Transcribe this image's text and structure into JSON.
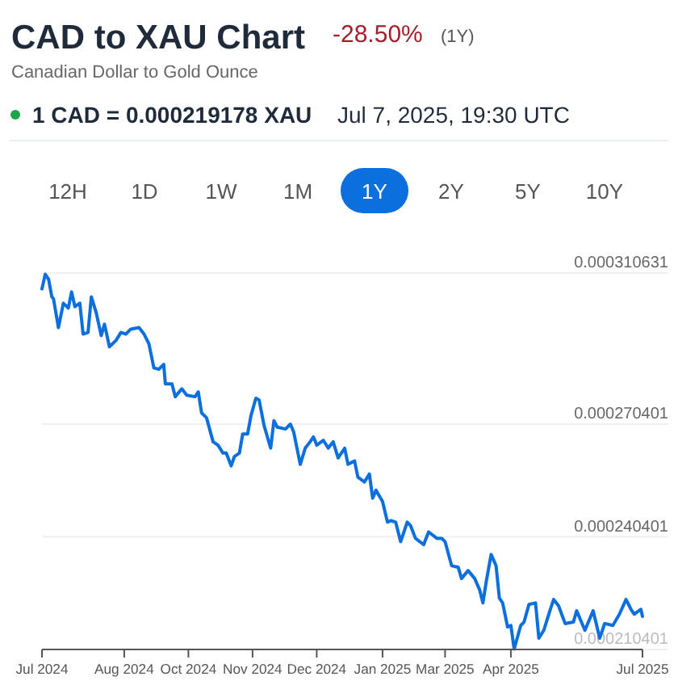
{
  "chart_data": {
    "type": "line",
    "title": "CAD to XAU Chart",
    "subtitle": "Canadian Dollar to Gold Ounce",
    "annotations": [
      "-28.50%",
      "(1Y)",
      "1 CAD = 0.000219178 XAU",
      "Jul 7, 2025, 19:30 UTC",
      "12H",
      "1D",
      "1W",
      "1M",
      "1Y",
      "2Y",
      "5Y",
      "10Y"
    ],
    "x": [
      "2024-07-07",
      "2024-07-09",
      "2024-07-11",
      "2024-07-13",
      "2024-07-14",
      "2024-07-17",
      "2024-07-20",
      "2024-07-23",
      "2024-07-25",
      "2024-07-27",
      "2024-07-30",
      "2024-08-01",
      "2024-08-04",
      "2024-08-06",
      "2024-08-09",
      "2024-08-12",
      "2024-08-14",
      "2024-08-17",
      "2024-08-21",
      "2024-08-24",
      "2024-08-27",
      "2024-08-30",
      "2024-09-04",
      "2024-09-07",
      "2024-09-10",
      "2024-09-13",
      "2024-09-16",
      "2024-09-19",
      "2024-09-20",
      "2024-09-24",
      "2024-09-26",
      "2024-09-30",
      "2024-10-03",
      "2024-10-08",
      "2024-10-10",
      "2024-10-12",
      "2024-10-15",
      "2024-10-19",
      "2024-10-22",
      "2024-10-25",
      "2024-10-27",
      "2024-10-30",
      "2024-11-01",
      "2024-11-04",
      "2024-11-06",
      "2024-11-09",
      "2024-11-11",
      "2024-11-14",
      "2024-11-16",
      "2024-11-19",
      "2024-11-23",
      "2024-11-25",
      "2024-11-27",
      "2024-12-02",
      "2024-12-05",
      "2024-12-07",
      "2024-12-11",
      "2024-12-14",
      "2024-12-17",
      "2024-12-19",
      "2024-12-21",
      "2024-12-25",
      "2024-12-28",
      "2024-12-31",
      "2025-01-03",
      "2025-01-07",
      "2025-01-09",
      "2025-01-13",
      "2025-01-15",
      "2025-01-19",
      "2025-01-22",
      "2025-01-24",
      "2025-01-26",
      "2025-01-30",
      "2025-02-02",
      "2025-02-04",
      "2025-02-07",
      "2025-02-10",
      "2025-02-14",
      "2025-02-16",
      "2025-02-19",
      "2025-02-24",
      "2025-02-27",
      "2025-03-04",
      "2025-03-07",
      "2025-03-09",
      "2025-03-13",
      "2025-03-17",
      "2025-03-19",
      "2025-03-23",
      "2025-03-27",
      "2025-03-30",
      "2025-04-01",
      "2025-04-03",
      "2025-04-06",
      "2025-04-09",
      "2025-04-11",
      "2025-04-13",
      "2025-04-16",
      "2025-04-18",
      "2025-04-20",
      "2025-04-24",
      "2025-04-26",
      "2025-04-29",
      "2025-05-03",
      "2025-05-05",
      "2025-05-08",
      "2025-05-12",
      "2025-05-14",
      "2025-05-17",
      "2025-05-21",
      "2025-05-26",
      "2025-05-28",
      "2025-06-02",
      "2025-06-07",
      "2025-06-11",
      "2025-06-14",
      "2025-06-19",
      "2025-06-23",
      "2025-06-27",
      "2025-06-30",
      "2025-07-02",
      "2025-07-06",
      "2025-07-07"
    ],
    "series": [
      {
        "color": "#0b6fde",
        "values": [
          0.0003064,
          0.0003103,
          0.000309,
          0.0003043,
          0.0003038,
          0.0002961,
          0.0003026,
          0.0003013,
          0.0003056,
          0.0003017,
          0.0003026,
          0.0002944,
          0.0002948,
          0.0003043,
          0.0003,
          0.000294,
          0.000297,
          0.000291,
          0.0002927,
          0.0002948,
          0.0002944,
          0.0002957,
          0.0002961,
          0.0002944,
          0.0002918,
          0.0002854,
          0.000285,
          0.0002863,
          0.0002811,
          0.0002811,
          0.0002777,
          0.0002798,
          0.0002781,
          0.0002777,
          0.000279,
          0.0002734,
          0.0002721,
          0.0002657,
          0.0002648,
          0.0002627,
          0.0002627,
          0.0002593,
          0.0002618,
          0.0002627,
          0.0002678,
          0.0002678,
          0.0002726,
          0.0002773,
          0.0002768,
          0.00027,
          0.000264,
          0.0002713,
          0.0002696,
          0.0002691,
          0.0002704,
          0.0002683,
          0.0002597,
          0.000264,
          0.0002657,
          0.000267,
          0.0002648,
          0.0002661,
          0.000264,
          0.0002657,
          0.0002614,
          0.000264,
          0.0002597,
          0.0002606,
          0.0002563,
          0.000255,
          0.0002571,
          0.0002507,
          0.0002528,
          0.0002498,
          0.0002443,
          0.0002447,
          0.0002443,
          0.0002391,
          0.0002443,
          0.0002434,
          0.00024,
          0.0002383,
          0.0002417,
          0.00024,
          0.00024,
          0.0002391,
          0.0002327,
          0.0002323,
          0.0002293,
          0.0002314,
          0.0002293,
          0.0002263,
          0.0002228,
          0.0002284,
          0.0002357,
          0.0002327,
          0.0002241,
          0.0002228,
          0.0002164,
          0.0002168,
          0.0002105,
          0.0002168,
          0.0002177,
          0.0002224,
          0.0002228,
          0.0002134,
          0.0002155,
          0.0002211,
          0.0002237,
          0.000222,
          0.0002173,
          0.0002177,
          0.0002207,
          0.0002155,
          0.0002207,
          0.0002134,
          0.0002173,
          0.0002168,
          0.0002198,
          0.0002237,
          0.0002211,
          0.0002198,
          0.0002211,
          0.0002192
        ]
      }
    ],
    "xlim": [
      "2024-07-07",
      "2025-07-07"
    ],
    "xticks": [
      {
        "value": "2024-07-07",
        "label": "Jul 2024"
      },
      {
        "value": "2024-08-26",
        "label": "Aug 2024"
      },
      {
        "value": "2024-10-04",
        "label": "Oct 2024"
      },
      {
        "value": "2024-11-12",
        "label": "Nov 2024"
      },
      {
        "value": "2024-12-21",
        "label": "Dec 2024"
      },
      {
        "value": "2025-01-30",
        "label": "Jan 2025"
      },
      {
        "value": "2025-03-09",
        "label": "Mar 2025"
      },
      {
        "value": "2025-04-18",
        "label": "Apr 2025"
      },
      {
        "value": "2025-07-07",
        "label": "Jul 2025"
      }
    ],
    "ylim": [
      0.000210401,
      0.000310631
    ],
    "yticks": [
      0.000210401,
      0.000240401,
      0.000270401,
      0.000310631
    ],
    "grid": "y",
    "marker": "none",
    "line_style": "solid"
  }
}
